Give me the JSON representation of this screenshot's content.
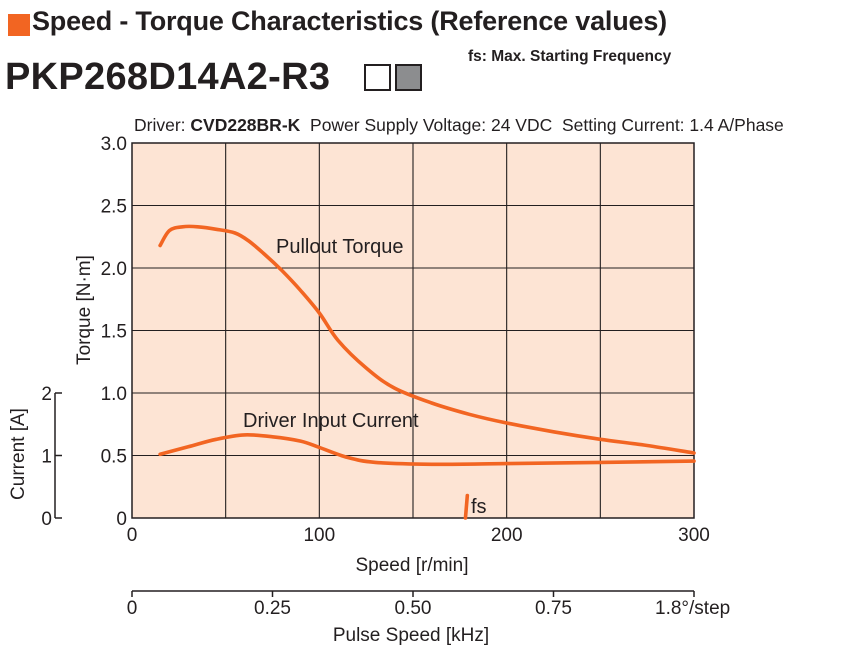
{
  "header": {
    "title": "Speed - Torque Characteristics (Reference values)",
    "fs_note": "fs: Max. Starting Frequency",
    "model": "PKP268D14A2-R3",
    "accent_color": "#f26522",
    "model_box_colors": [
      "#ffffff",
      "#8c8d8f"
    ]
  },
  "conditions": {
    "driver_prefix": "Driver: ",
    "driver_model": "CVD228BR-K",
    "voltage": "Power Supply Voltage: 24 VDC",
    "current": "Setting Current: 1.4 A/Phase"
  },
  "chart_data": {
    "type": "line",
    "plot_background": "#fde4d4",
    "grid": true,
    "xlabel": "Speed [r/min]",
    "xlim": [
      0,
      300
    ],
    "x_ticks": [
      0,
      100,
      200,
      300
    ],
    "x_tick_labels": [
      "0",
      "100",
      "200",
      "300"
    ],
    "ylabel": "Torque [N·m]",
    "ylim": [
      0,
      3.0
    ],
    "y_ticks": [
      0,
      0.5,
      1.0,
      1.5,
      2.0,
      2.5,
      3.0
    ],
    "y_tick_labels": [
      "0",
      "0.5",
      "1.0",
      "1.5",
      "2.0",
      "2.5",
      "3.0"
    ],
    "secondary_y": {
      "label": "Current [A]",
      "lim": [
        0,
        2
      ],
      "ticks": [
        0,
        1,
        2
      ],
      "tick_labels": [
        "0",
        "1",
        "2"
      ]
    },
    "secondary_x": {
      "label": "Pulse Speed [kHz]",
      "lim": [
        0,
        1.0
      ],
      "ticks": [
        0,
        0.25,
        0.5,
        0.75
      ],
      "tick_labels": [
        "0",
        "0.25",
        "0.50",
        "0.75"
      ],
      "step_label": "1.8°/step"
    },
    "series": [
      {
        "name": "Pullout Torque",
        "axis": "torque",
        "color": "#f26522",
        "x": [
          15,
          20,
          27,
          35,
          45,
          55,
          62,
          70,
          80,
          90,
          100,
          110,
          125,
          140,
          160,
          180,
          200,
          225,
          250,
          275,
          300
        ],
        "y": [
          2.18,
          2.3,
          2.33,
          2.33,
          2.31,
          2.28,
          2.22,
          2.12,
          1.98,
          1.82,
          1.64,
          1.42,
          1.2,
          1.04,
          0.92,
          0.83,
          0.76,
          0.69,
          0.63,
          0.58,
          0.52
        ]
      },
      {
        "name": "Driver Input Current",
        "axis": "current",
        "color": "#f26522",
        "x": [
          15,
          30,
          45,
          60,
          75,
          90,
          100,
          115,
          130,
          160,
          200,
          250,
          300
        ],
        "y": [
          1.02,
          1.14,
          1.26,
          1.33,
          1.3,
          1.23,
          1.13,
          0.97,
          0.89,
          0.86,
          0.87,
          0.89,
          0.91
        ]
      }
    ],
    "fs_marker": {
      "label": "fs",
      "x": [
        179,
        178
      ],
      "y": [
        0.18,
        0.0
      ],
      "color": "#f26522"
    }
  }
}
